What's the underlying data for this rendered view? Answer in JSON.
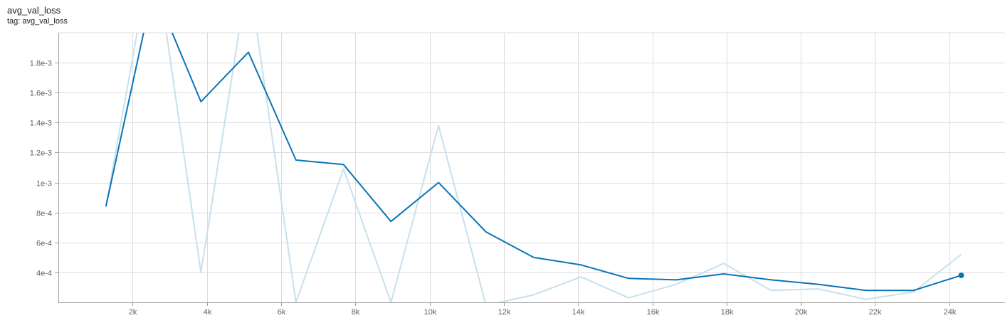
{
  "header": {
    "title": "avg_val_loss",
    "subtitle": "tag: avg_val_loss"
  },
  "colors": {
    "smoothed": "#0a74b8",
    "raw": "#c8e0ec",
    "grid": "#dcdcdc",
    "axis": "#9e9e9e",
    "tick_label": "#616161"
  },
  "chart_data": {
    "type": "line",
    "title": "avg_val_loss",
    "xlabel": "",
    "ylabel": "",
    "xlim": [
      0,
      25500
    ],
    "ylim": [
      0.0002,
      0.002
    ],
    "grid": true,
    "x_ticks": [
      {
        "value": 2000,
        "label": "2k"
      },
      {
        "value": 4000,
        "label": "4k"
      },
      {
        "value": 6000,
        "label": "6k"
      },
      {
        "value": 8000,
        "label": "8k"
      },
      {
        "value": 10000,
        "label": "10k"
      },
      {
        "value": 12000,
        "label": "12k"
      },
      {
        "value": 14000,
        "label": "14k"
      },
      {
        "value": 16000,
        "label": "16k"
      },
      {
        "value": 18000,
        "label": "18k"
      },
      {
        "value": 20000,
        "label": "20k"
      },
      {
        "value": 22000,
        "label": "22k"
      },
      {
        "value": 24000,
        "label": "24k"
      }
    ],
    "y_ticks": [
      {
        "value": 0.0004,
        "label": "4e-4"
      },
      {
        "value": 0.0006,
        "label": "6e-4"
      },
      {
        "value": 0.0008,
        "label": "8e-4"
      },
      {
        "value": 0.001,
        "label": "1e-3"
      },
      {
        "value": 0.0012,
        "label": "1.2e-3"
      },
      {
        "value": 0.0014,
        "label": "1.4e-3"
      },
      {
        "value": 0.0016,
        "label": "1.6e-3"
      },
      {
        "value": 0.0018,
        "label": "1.8e-3"
      }
    ],
    "series": [
      {
        "role": "raw",
        "x": [
          1280,
          2560,
          3840,
          5120,
          6400,
          7680,
          8960,
          10240,
          11520,
          12800,
          14080,
          15360,
          16640,
          17920,
          19200,
          20480,
          21760,
          23040,
          24320
        ],
        "y": [
          0.00084,
          0.0026,
          0.0004,
          0.0024,
          0.0002,
          0.00109,
          0.0002,
          0.00138,
          0.00018,
          0.00025,
          0.00037,
          0.00023,
          0.00032,
          0.00046,
          0.00028,
          0.00029,
          0.00022,
          0.00027,
          0.00052
        ]
      },
      {
        "role": "smoothed",
        "x": [
          1280,
          2560,
          3840,
          5120,
          6400,
          7680,
          8960,
          10240,
          11520,
          12800,
          14080,
          15360,
          16640,
          17920,
          19200,
          20480,
          21760,
          23040,
          24320
        ],
        "y": [
          0.00084,
          0.0023,
          0.00154,
          0.00187,
          0.00115,
          0.00112,
          0.00074,
          0.001,
          0.00067,
          0.0005,
          0.00045,
          0.00036,
          0.00035,
          0.00039,
          0.00035,
          0.00032,
          0.00028,
          0.00028,
          0.00038
        ]
      }
    ]
  }
}
